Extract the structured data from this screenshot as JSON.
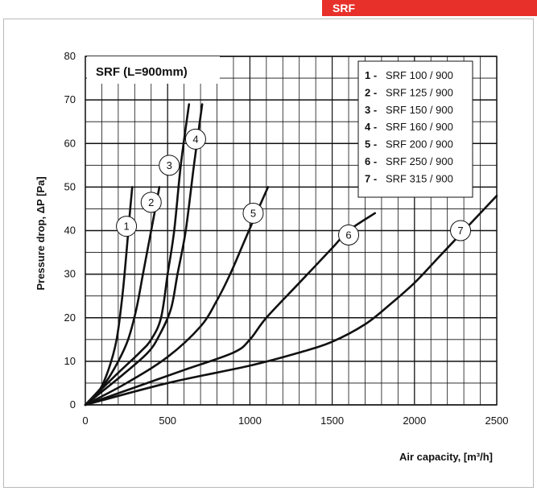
{
  "header": {
    "tag_label": "SRF",
    "accent_color": "#e8302a"
  },
  "chart_data": {
    "type": "line",
    "title": "SRF (L=900mm)",
    "xlabel": "Air capacity, [m³/h]",
    "ylabel": "Pressure drop, ΔP [Pa]",
    "xlim": [
      0,
      2500
    ],
    "ylim": [
      0,
      80
    ],
    "x_ticks": [
      0,
      500,
      1000,
      1500,
      2000,
      2500
    ],
    "y_ticks": [
      0,
      10,
      20,
      30,
      40,
      50,
      60,
      70,
      80
    ],
    "x_minor_step": 100,
    "y_minor_step": 5,
    "grid": true,
    "legend_position": "top-right",
    "series": [
      {
        "id": "1",
        "name": "SRF 100 / 900",
        "label_at": [
          250,
          41
        ],
        "points": [
          [
            0,
            0
          ],
          [
            80,
            3
          ],
          [
            140,
            8
          ],
          [
            190,
            15
          ],
          [
            225,
            25
          ],
          [
            250,
            35
          ],
          [
            268,
            43
          ],
          [
            285,
            50
          ]
        ]
      },
      {
        "id": "2",
        "name": "SRF 125 / 900",
        "label_at": [
          400,
          46.5
        ],
        "points": [
          [
            0,
            0
          ],
          [
            120,
            5
          ],
          [
            200,
            10
          ],
          [
            260,
            15
          ],
          [
            310,
            22
          ],
          [
            350,
            30
          ],
          [
            400,
            40
          ],
          [
            450,
            50
          ]
        ]
      },
      {
        "id": "3",
        "name": "SRF 150 / 900",
        "label_at": [
          510,
          55
        ],
        "points": [
          [
            0,
            0
          ],
          [
            190,
            7
          ],
          [
            330,
            12
          ],
          [
            400,
            15
          ],
          [
            460,
            20
          ],
          [
            500,
            30
          ],
          [
            540,
            40
          ],
          [
            580,
            55
          ],
          [
            630,
            69
          ]
        ]
      },
      {
        "id": "4",
        "name": "SRF 160 / 900",
        "label_at": [
          670,
          61
        ],
        "points": [
          [
            0,
            0
          ],
          [
            230,
            7
          ],
          [
            380,
            12
          ],
          [
            450,
            16
          ],
          [
            520,
            22
          ],
          [
            560,
            30
          ],
          [
            610,
            40
          ],
          [
            660,
            55
          ],
          [
            710,
            69
          ]
        ]
      },
      {
        "id": "5",
        "name": "SRF 200 / 900",
        "label_at": [
          1020,
          44
        ],
        "points": [
          [
            0,
            0
          ],
          [
            250,
            5
          ],
          [
            500,
            11
          ],
          [
            700,
            18
          ],
          [
            800,
            24
          ],
          [
            880,
            30
          ],
          [
            960,
            37
          ],
          [
            1040,
            44
          ],
          [
            1110,
            50
          ]
        ]
      },
      {
        "id": "6",
        "name": "SRF 250 / 900",
        "label_at": [
          1600,
          39
        ],
        "points": [
          [
            0,
            0
          ],
          [
            300,
            4
          ],
          [
            600,
            8
          ],
          [
            900,
            12
          ],
          [
            1000,
            15
          ],
          [
            1100,
            20
          ],
          [
            1300,
            28
          ],
          [
            1500,
            36
          ],
          [
            1600,
            40
          ],
          [
            1760,
            44
          ]
        ]
      },
      {
        "id": "7",
        "name": "SRF 315 / 900",
        "label_at": [
          2280,
          40
        ],
        "points": [
          [
            0,
            0
          ],
          [
            500,
            5
          ],
          [
            1000,
            9
          ],
          [
            1300,
            12
          ],
          [
            1500,
            14.5
          ],
          [
            1700,
            18.5
          ],
          [
            1850,
            23
          ],
          [
            2000,
            28
          ],
          [
            2150,
            34
          ],
          [
            2300,
            40
          ],
          [
            2500,
            48
          ]
        ]
      }
    ],
    "legend_entries": [
      {
        "num": "1 -",
        "text": "SRF  100 / 900"
      },
      {
        "num": "2 -",
        "text": "SRF  125 / 900"
      },
      {
        "num": "3 -",
        "text": "SRF  150 / 900"
      },
      {
        "num": "4 -",
        "text": "SRF  160 / 900"
      },
      {
        "num": "5 -",
        "text": "SRF  200 / 900"
      },
      {
        "num": "6 -",
        "text": "SRF  250 / 900"
      },
      {
        "num": "7 -",
        "text": "SRF  315 / 900"
      }
    ]
  }
}
